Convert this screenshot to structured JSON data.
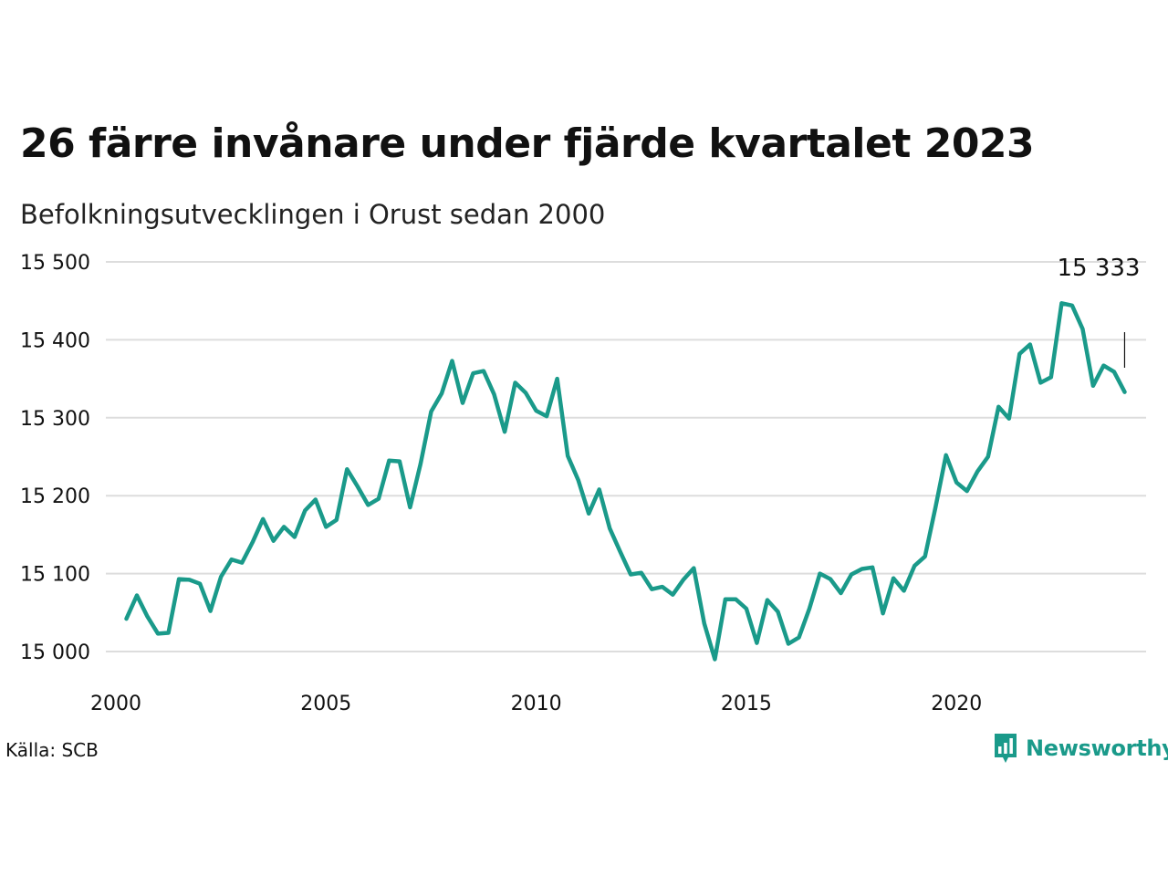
{
  "header": {
    "title": "26 färre invånare under fjärde kvartalet 2023",
    "subtitle": "Befolkningsutvecklingen i Orust sedan 2000"
  },
  "footer": {
    "source": "Källa: SCB",
    "brand": "Newsworthy"
  },
  "colors": {
    "line": "#1a9a8a",
    "grid": "#dddddd",
    "brand": "#1a9a8a"
  },
  "chart_data": {
    "type": "line",
    "title": "26 färre invånare under fjärde kvartalet 2023",
    "subtitle": "Befolkningsutvecklingen i Orust sedan 2000",
    "xlabel": "",
    "ylabel": "",
    "grid": "horizontal",
    "xlim": [
      2000,
      2024.75
    ],
    "ylim": [
      14985,
      15500
    ],
    "x_ticks": [
      2000,
      2005,
      2010,
      2015,
      2020
    ],
    "x_tick_labels": [
      "2000",
      "2005",
      "2010",
      "2015",
      "2020"
    ],
    "y_ticks": [
      15000,
      15100,
      15200,
      15300,
      15400,
      15500
    ],
    "y_tick_labels": [
      "15 000",
      "15 100",
      "15 200",
      "15 300",
      "15 400",
      "15 500"
    ],
    "end_label": "15 333",
    "series": [
      {
        "x": [
          2000.25,
          2000.5,
          2000.75,
          2001,
          2001.25,
          2001.5,
          2001.75,
          2002,
          2002.25,
          2002.5,
          2002.75,
          2003,
          2003.25,
          2003.5,
          2003.75,
          2004,
          2004.25,
          2004.5,
          2004.75,
          2005,
          2005.25,
          2005.5,
          2005.75,
          2006,
          2006.25,
          2006.5,
          2006.75,
          2007,
          2007.25,
          2007.5,
          2007.75,
          2008,
          2008.25,
          2008.5,
          2008.75,
          2009,
          2009.25,
          2009.5,
          2009.75,
          2010,
          2010.25,
          2010.5,
          2010.75,
          2011,
          2011.25,
          2011.5,
          2011.75,
          2012,
          2012.25,
          2012.5,
          2012.75,
          2013,
          2013.25,
          2013.5,
          2013.75,
          2014,
          2014.25,
          2014.5,
          2014.75,
          2015,
          2015.25,
          2015.5,
          2015.75,
          2016,
          2016.25,
          2016.5,
          2016.75,
          2017,
          2017.25,
          2017.5,
          2017.75,
          2018,
          2018.25,
          2018.5,
          2018.75,
          2019,
          2019.25,
          2019.5,
          2019.75,
          2020,
          2020.25,
          2020.5,
          2020.75,
          2021,
          2021.25,
          2021.5,
          2021.75,
          2022,
          2022.25,
          2022.5,
          2022.75,
          2023,
          2023.25,
          2023.5,
          2023.75,
          2024
        ],
        "values": [
          15042,
          15072,
          15045,
          15023,
          15024,
          15093,
          15092,
          15087,
          15052,
          15096,
          15118,
          15114,
          15140,
          15170,
          15142,
          15160,
          15147,
          15181,
          15195,
          15160,
          15169,
          15234,
          15212,
          15188,
          15196,
          15245,
          15244,
          15185,
          15241,
          15308,
          15331,
          15373,
          15319,
          15357,
          15360,
          15330,
          15282,
          15345,
          15332,
          15309,
          15302,
          15350,
          15251,
          15220,
          15177,
          15208,
          15158,
          15128,
          15099,
          15101,
          15080,
          15083,
          15073,
          15092,
          15107,
          15036,
          14990,
          15067,
          15067,
          15055,
          15011,
          15066,
          15051,
          15010,
          15018,
          15055,
          15100,
          15093,
          15075,
          15099,
          15106,
          15108,
          15049,
          15094,
          15078,
          15110,
          15122,
          15185,
          15252,
          15217,
          15206,
          15231,
          15250,
          15314,
          15299,
          15382,
          15394,
          15345,
          15352,
          15447,
          15444,
          15414,
          15341,
          15367,
          15359,
          15333
        ]
      }
    ]
  }
}
